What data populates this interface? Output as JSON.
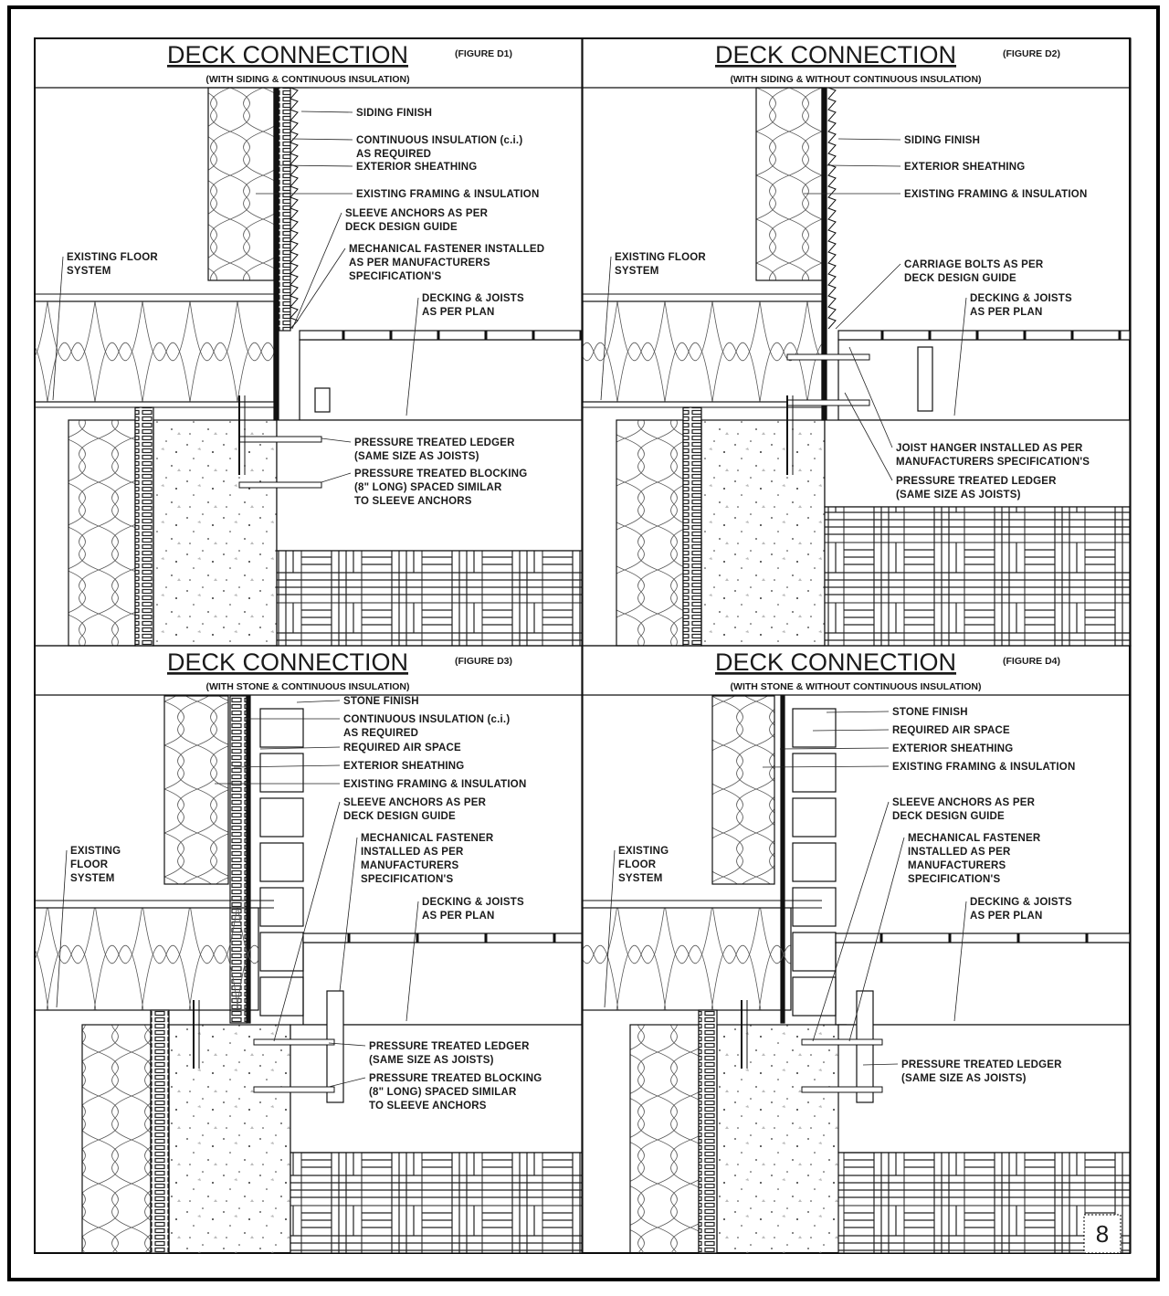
{
  "panels": [
    {
      "title": "DECK CONNECTION",
      "figure": "(FIGURE D1)",
      "subtitle": "(WITH SIDING & CONTINUOUS INSULATION)",
      "labels": [
        [
          "SIDING FINISH"
        ],
        [
          "CONTINUOUS INSULATION (c.i.)",
          "AS REQUIRED"
        ],
        [
          "EXTERIOR SHEATHING"
        ],
        [
          "EXISTING FRAMING & INSULATION"
        ],
        [
          "SLEEVE ANCHORS AS PER",
          "DECK DESIGN GUIDE"
        ],
        [
          "MECHANICAL FASTENER INSTALLED",
          "AS PER MANUFACTURERS",
          "SPECIFICATION'S"
        ],
        [
          "DECKING & JOISTS",
          "AS PER PLAN"
        ],
        [
          "PRESSURE TREATED LEDGER",
          "(SAME SIZE AS JOISTS)"
        ],
        [
          "PRESSURE TREATED BLOCKING",
          "(8\" LONG) SPACED SIMILAR",
          "TO SLEEVE ANCHORS"
        ],
        [
          "EXISTING FLOOR",
          "SYSTEM"
        ]
      ]
    },
    {
      "title": "DECK CONNECTION",
      "figure": "(FIGURE D2)",
      "subtitle": "(WITH SIDING & WITHOUT CONTINUOUS INSULATION)",
      "labels": [
        [
          "SIDING FINISH"
        ],
        [
          "EXTERIOR SHEATHING"
        ],
        [
          "EXISTING FRAMING & INSULATION"
        ],
        [
          "CARRIAGE BOLTS AS PER",
          "DECK DESIGN GUIDE"
        ],
        [
          "DECKING & JOISTS",
          "AS PER PLAN"
        ],
        [
          "JOIST HANGER INSTALLED AS PER",
          "MANUFACTURERS SPECIFICATION'S"
        ],
        [
          "PRESSURE TREATED LEDGER",
          "(SAME SIZE AS JOISTS)"
        ],
        [
          "EXISTING FLOOR",
          "SYSTEM"
        ]
      ]
    },
    {
      "title": "DECK CONNECTION",
      "figure": "(FIGURE D3)",
      "subtitle": "(WITH STONE & CONTINUOUS INSULATION)",
      "labels": [
        [
          "STONE FINISH"
        ],
        [
          "CONTINUOUS INSULATION (c.i.)",
          "AS REQUIRED"
        ],
        [
          "REQUIRED AIR SPACE"
        ],
        [
          "EXTERIOR SHEATHING"
        ],
        [
          "EXISTING FRAMING & INSULATION"
        ],
        [
          "SLEEVE ANCHORS AS PER",
          "DECK DESIGN GUIDE"
        ],
        [
          "MECHANICAL FASTENER",
          "INSTALLED AS PER",
          "MANUFACTURERS",
          "SPECIFICATION'S"
        ],
        [
          "DECKING & JOISTS",
          "AS PER PLAN"
        ],
        [
          "PRESSURE TREATED LEDGER",
          "(SAME SIZE AS JOISTS)"
        ],
        [
          "PRESSURE TREATED BLOCKING",
          "(8\" LONG) SPACED SIMILAR",
          "TO SLEEVE ANCHORS"
        ],
        [
          "EXISTING",
          "FLOOR",
          "SYSTEM"
        ]
      ]
    },
    {
      "title": "DECK CONNECTION",
      "figure": "(FIGURE D4)",
      "subtitle": "(WITH STONE & WITHOUT CONTINUOUS INSULATION)",
      "labels": [
        [
          "STONE FINISH"
        ],
        [
          "REQUIRED AIR SPACE"
        ],
        [
          "EXTERIOR SHEATHING"
        ],
        [
          "EXISTING FRAMING & INSULATION"
        ],
        [
          "SLEEVE ANCHORS AS PER",
          "DECK DESIGN GUIDE"
        ],
        [
          "MECHANICAL FASTENER",
          "INSTALLED AS PER",
          "MANUFACTURERS",
          "SPECIFICATION'S"
        ],
        [
          "DECKING & JOISTS",
          "AS PER PLAN"
        ],
        [
          "PRESSURE TREATED LEDGER",
          "(SAME SIZE AS JOISTS)"
        ],
        [
          "EXISTING",
          "FLOOR",
          "SYSTEM"
        ]
      ]
    }
  ],
  "page_number": "8"
}
